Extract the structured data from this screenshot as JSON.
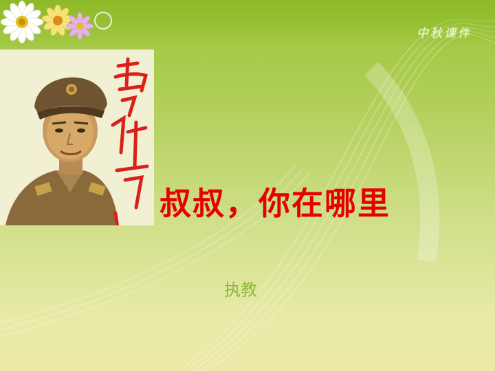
{
  "slide": {
    "title": "叔叔，你在哪里",
    "subtitle": "执教",
    "logo_text": "中秋课件"
  },
  "images": {
    "portrait": "portrait-photo",
    "signature": "calligraphy-signature",
    "flowers": "flower-decoration"
  },
  "colors": {
    "background_top": "#9dc437",
    "background_bottom": "#ece9a8",
    "title": "#e60000",
    "subtitle": "#8ab83a",
    "signature": "#d9201b"
  }
}
